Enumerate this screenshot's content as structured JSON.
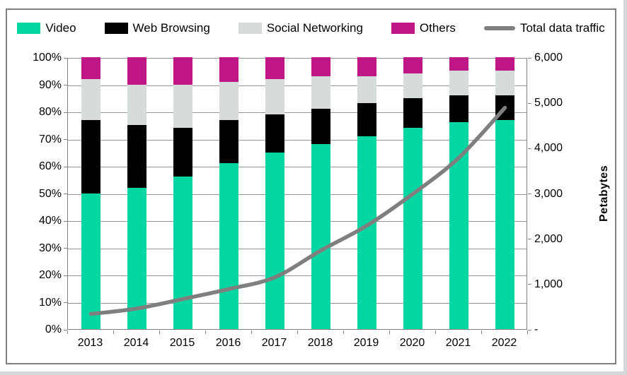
{
  "chart_data": {
    "type": "combo-stacked-bar-line",
    "categories": [
      "2013",
      "2014",
      "2015",
      "2016",
      "2017",
      "2018",
      "2019",
      "2020",
      "2021",
      "2022"
    ],
    "series": [
      {
        "name": "Video",
        "type": "bar",
        "color": "#02d7a4",
        "unit": "%",
        "values": [
          50,
          52,
          56,
          61,
          65,
          68,
          71,
          74,
          76,
          77
        ]
      },
      {
        "name": "Web Browsing",
        "type": "bar",
        "color": "#000000",
        "unit": "%",
        "values": [
          27,
          23,
          18,
          16,
          14,
          13,
          12,
          11,
          10,
          9
        ]
      },
      {
        "name": "Social Networking",
        "type": "bar",
        "color": "#d6dbdc",
        "unit": "%",
        "values": [
          15,
          15,
          16,
          14,
          13,
          12,
          10,
          9,
          9,
          9
        ]
      },
      {
        "name": "Others",
        "type": "bar",
        "color": "#c01585",
        "unit": "%",
        "values": [
          8,
          10,
          10,
          9,
          8,
          7,
          7,
          6,
          5,
          5
        ]
      },
      {
        "name": "Total data traffic",
        "type": "line",
        "color": "#7f7f7f",
        "unit": "petabytes",
        "axis": "right",
        "values": [
          350,
          470,
          680,
          900,
          1160,
          1750,
          2300,
          3000,
          3800,
          4900
        ]
      }
    ],
    "left_axis": {
      "min": 0,
      "max": 100,
      "ticks": [
        "0%",
        "10%",
        "20%",
        "30%",
        "40%",
        "50%",
        "60%",
        "70%",
        "80%",
        "90%",
        "100%"
      ]
    },
    "right_axis": {
      "min": 0,
      "max": 6000,
      "ticks": [
        "-",
        "1,000",
        "2,000",
        "3,000",
        "4,000",
        "5,000",
        "6,000"
      ],
      "label": "Petabytes"
    },
    "legend_position": "top",
    "grid": true,
    "bar_totals_percent": 100
  },
  "colors": {
    "gridline": "#969696",
    "axis": "#808080",
    "frame_border": "#808080",
    "canvas_edge": "#d4d8da",
    "text": "#000000"
  }
}
